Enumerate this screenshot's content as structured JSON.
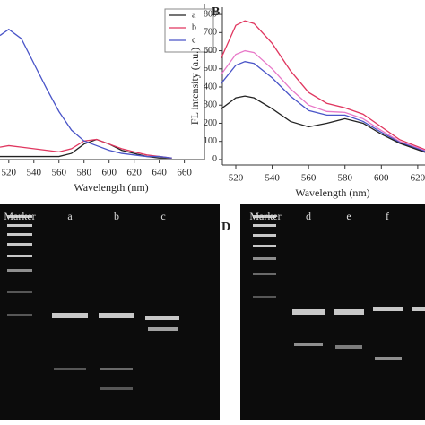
{
  "chart_data": [
    {
      "type": "line",
      "xlabel": "Wavelength (nm)",
      "xlim": [
        513,
        676
      ],
      "ylim": [
        0,
        1.0
      ],
      "xticks": [
        520,
        540,
        560,
        580,
        600,
        620,
        640,
        660
      ],
      "legend": "upper right",
      "x": [
        513,
        520,
        530,
        540,
        550,
        560,
        570,
        580,
        590,
        600,
        610,
        620,
        630,
        640,
        650
      ],
      "series": [
        {
          "name": "a",
          "color": "#222222",
          "values": [
            0.02,
            0.02,
            0.02,
            0.02,
            0.02,
            0.02,
            0.04,
            0.1,
            0.13,
            0.1,
            0.06,
            0.04,
            0.02,
            0.01,
            0.01
          ]
        },
        {
          "name": "b",
          "color": "#e0365f",
          "values": [
            0.08,
            0.09,
            0.08,
            0.07,
            0.06,
            0.05,
            0.07,
            0.12,
            0.13,
            0.1,
            0.07,
            0.05,
            0.03,
            0.02,
            0.01
          ]
        },
        {
          "name": "c",
          "color": "#4a55c8",
          "values": [
            0.8,
            0.84,
            0.78,
            0.62,
            0.46,
            0.31,
            0.19,
            0.12,
            0.09,
            0.06,
            0.04,
            0.03,
            0.02,
            0.02,
            0.01
          ]
        }
      ]
    },
    {
      "type": "line",
      "panel": "B",
      "xlabel": "Wavelength (nm)",
      "ylabel": "FL intensity (a.u.)",
      "xlim": [
        512.6,
        624
      ],
      "ylim": [
        -30,
        840
      ],
      "xticks": [
        520,
        540,
        560,
        580,
        600,
        620
      ],
      "yticks": [
        0,
        100,
        200,
        300,
        400,
        500,
        600,
        700,
        800
      ],
      "x": [
        512,
        520,
        525,
        530,
        540,
        550,
        560,
        570,
        580,
        590,
        600,
        610,
        624
      ],
      "series": [
        {
          "color": "#e0365f",
          "values": [
            560,
            740,
            765,
            750,
            640,
            490,
            370,
            310,
            285,
            250,
            180,
            110,
            55
          ]
        },
        {
          "color": "#e878c8",
          "values": [
            470,
            580,
            600,
            590,
            500,
            390,
            300,
            265,
            260,
            225,
            160,
            100,
            50
          ]
        },
        {
          "color": "#4a55c8",
          "values": [
            420,
            520,
            540,
            530,
            450,
            350,
            270,
            245,
            245,
            210,
            150,
            95,
            45
          ]
        },
        {
          "color": "#222222",
          "values": [
            280,
            340,
            350,
            340,
            280,
            210,
            180,
            200,
            225,
            200,
            140,
            90,
            40
          ]
        }
      ]
    }
  ],
  "gels": [
    {
      "lanes": [
        "Marker",
        "a",
        "b",
        "c"
      ]
    },
    {
      "panel": "D",
      "lanes": [
        "Marker",
        "d",
        "e",
        "f"
      ]
    }
  ]
}
